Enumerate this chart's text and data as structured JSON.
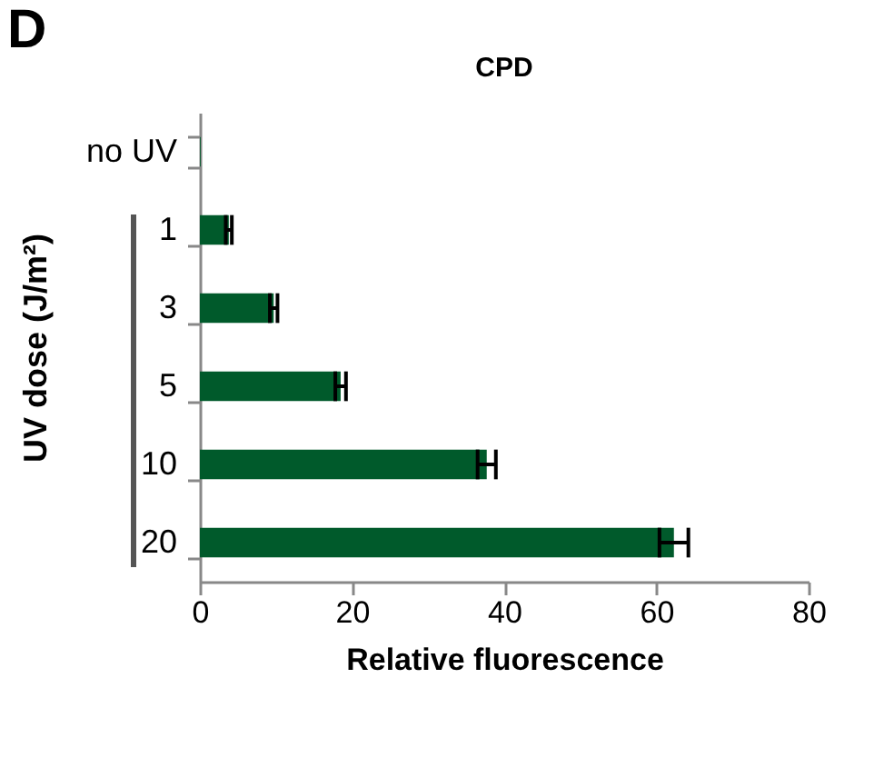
{
  "chart_data": {
    "type": "bar",
    "orientation": "horizontal",
    "title": "CPD",
    "xlabel": "Relative fluorescence",
    "ylabel": "UV dose (J/m²)",
    "annotations": [
      "D"
    ],
    "categories": [
      "no UV",
      "1",
      "3",
      "5",
      "10",
      "20"
    ],
    "values": [
      0.1,
      3.8,
      9.7,
      18.5,
      37.7,
      62.3
    ],
    "errors": [
      null,
      0.4,
      0.5,
      0.7,
      1.2,
      1.9
    ],
    "color": "#005a2b",
    "xlim": [
      0,
      80
    ],
    "xticks": [
      0,
      20,
      40,
      60,
      80
    ],
    "grid": false
  }
}
